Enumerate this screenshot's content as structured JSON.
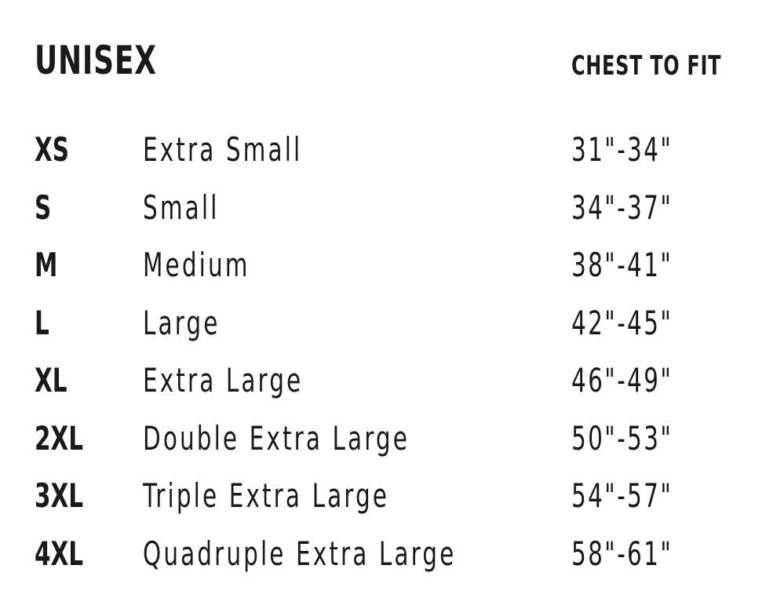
{
  "title": "UNISEX",
  "column_header": "CHEST TO FIT",
  "rows": [
    {
      "code": "XS",
      "name": "Extra Small",
      "chest": "31\"-34\""
    },
    {
      "code": "S",
      "name": "Small",
      "chest": "34\"-37\""
    },
    {
      "code": "M",
      "name": "Medium",
      "chest": "38\"-41\""
    },
    {
      "code": "L",
      "name": "Large",
      "chest": "42\"-45\""
    },
    {
      "code": "XL",
      "name": "Extra Large",
      "chest": "46\"-49\""
    },
    {
      "code": "2XL",
      "name": "Double Extra Large",
      "chest": "50\"-53\""
    },
    {
      "code": "3XL",
      "name": "Triple Extra Large",
      "chest": "54\"-57\""
    },
    {
      "code": "4XL",
      "name": "Quadruple Extra Large",
      "chest": "58\"-61\""
    }
  ]
}
